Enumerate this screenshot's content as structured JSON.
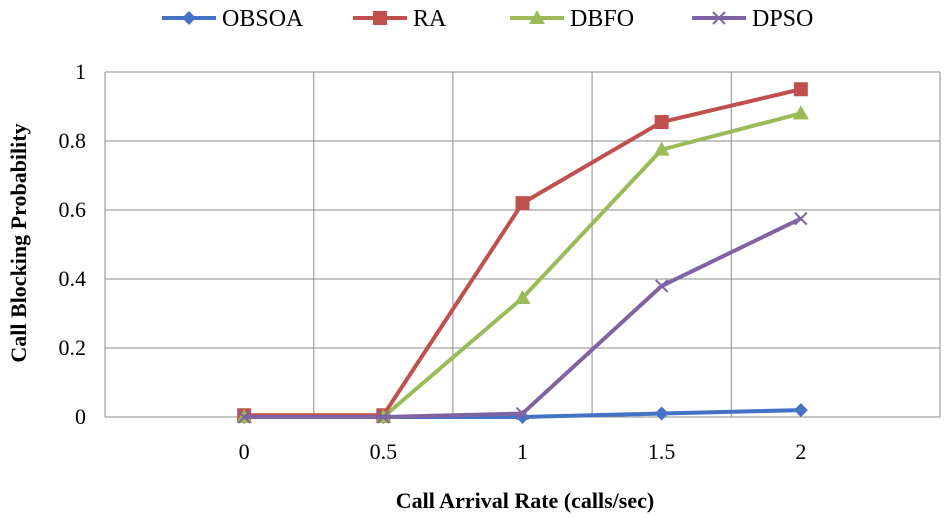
{
  "chart_data": {
    "type": "line",
    "title": "",
    "xlabel": "Call Arrival  Rate (calls/sec)",
    "ylabel": "Call Blocking  Probability",
    "x": [
      0,
      0.5,
      1,
      1.5,
      2
    ],
    "xticks": [
      "0",
      "0.5",
      "1",
      "1.5",
      "2"
    ],
    "yticks": [
      "0",
      "0.2",
      "0.4",
      "0.6",
      "0.8",
      "1"
    ],
    "xlim": [
      -0.5,
      2.5
    ],
    "ylim": [
      0,
      1
    ],
    "grid": true,
    "legend_position": "top",
    "series": [
      {
        "name": "OBSOA",
        "color": "#4472C4",
        "marker": "diamond",
        "values": [
          0,
          0,
          0,
          0.01,
          0.02
        ]
      },
      {
        "name": "RA",
        "color": "#C0504D",
        "marker": "square",
        "values": [
          0.005,
          0.005,
          0.62,
          0.855,
          0.95
        ]
      },
      {
        "name": "DBFO",
        "color": "#9BBB59",
        "marker": "triangle",
        "values": [
          0,
          0,
          0.345,
          0.775,
          0.88
        ]
      },
      {
        "name": "DPSO",
        "color": "#8064A2",
        "marker": "x",
        "values": [
          0,
          0,
          0.01,
          0.38,
          0.575
        ]
      }
    ]
  }
}
